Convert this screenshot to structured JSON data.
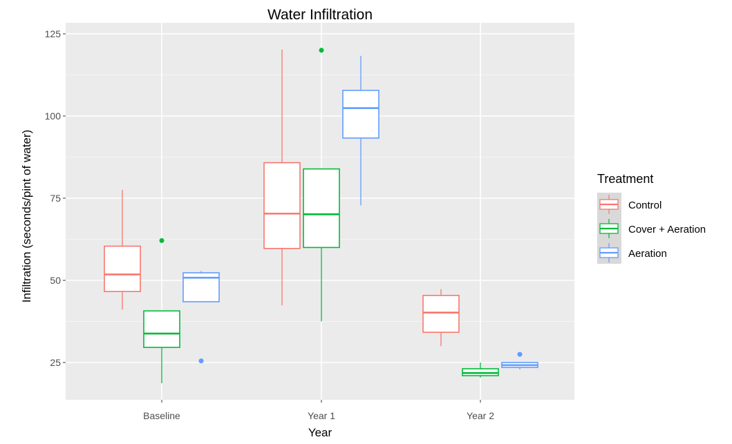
{
  "chart_data": {
    "type": "boxplot",
    "title": "Water Infiltration",
    "xlabel": "Year",
    "ylabel": "Infiltration (seconds/pint of water)",
    "categories": [
      "Baseline",
      "Year 1",
      "Year 2"
    ],
    "ylim": [
      13,
      127
    ],
    "yticks": [
      25,
      50,
      75,
      100,
      125
    ],
    "grid": true,
    "legend": {
      "title": "Treatment",
      "position": "right"
    },
    "series": [
      {
        "name": "Control",
        "color": "#F8766D",
        "boxes": [
          {
            "category": "Baseline",
            "lower_whisker": 41.1,
            "q1": 46.6,
            "median": 51.8,
            "q3": 60.4,
            "upper_whisker": 77.5,
            "outliers": []
          },
          {
            "category": "Year 1",
            "lower_whisker": 42.4,
            "q1": 59.7,
            "median": 70.3,
            "q3": 85.8,
            "upper_whisker": 120.2,
            "outliers": []
          },
          {
            "category": "Year 2",
            "lower_whisker": 30.0,
            "q1": 34.2,
            "median": 40.2,
            "q3": 45.4,
            "upper_whisker": 47.3,
            "outliers": []
          }
        ]
      },
      {
        "name": "Cover + Aeration",
        "color": "#00BA38",
        "boxes": [
          {
            "category": "Baseline",
            "lower_whisker": 18.7,
            "q1": 29.6,
            "median": 33.8,
            "q3": 40.7,
            "upper_whisker": 40.7,
            "outliers": [
              62.1
            ]
          },
          {
            "category": "Year 1",
            "lower_whisker": 37.5,
            "q1": 60.0,
            "median": 70.1,
            "q3": 83.9,
            "upper_whisker": 83.9,
            "outliers": [
              120.0
            ]
          },
          {
            "category": "Year 2",
            "lower_whisker": 20.4,
            "q1": 21.0,
            "median": 21.8,
            "q3": 23.1,
            "upper_whisker": 25.0,
            "outliers": []
          }
        ]
      },
      {
        "name": "Aeration",
        "color": "#619CFF",
        "boxes": [
          {
            "category": "Baseline",
            "lower_whisker": 43.5,
            "q1": 43.5,
            "median": 50.8,
            "q3": 52.3,
            "upper_whisker": 52.8,
            "outliers": [
              25.5
            ]
          },
          {
            "category": "Year 1",
            "lower_whisker": 72.8,
            "q1": 93.3,
            "median": 102.4,
            "q3": 107.8,
            "upper_whisker": 118.3,
            "outliers": []
          },
          {
            "category": "Year 2",
            "lower_whisker": 22.9,
            "q1": 23.5,
            "median": 24.2,
            "q3": 25.0,
            "upper_whisker": 25.0,
            "outliers": [
              27.5
            ]
          }
        ]
      }
    ]
  }
}
